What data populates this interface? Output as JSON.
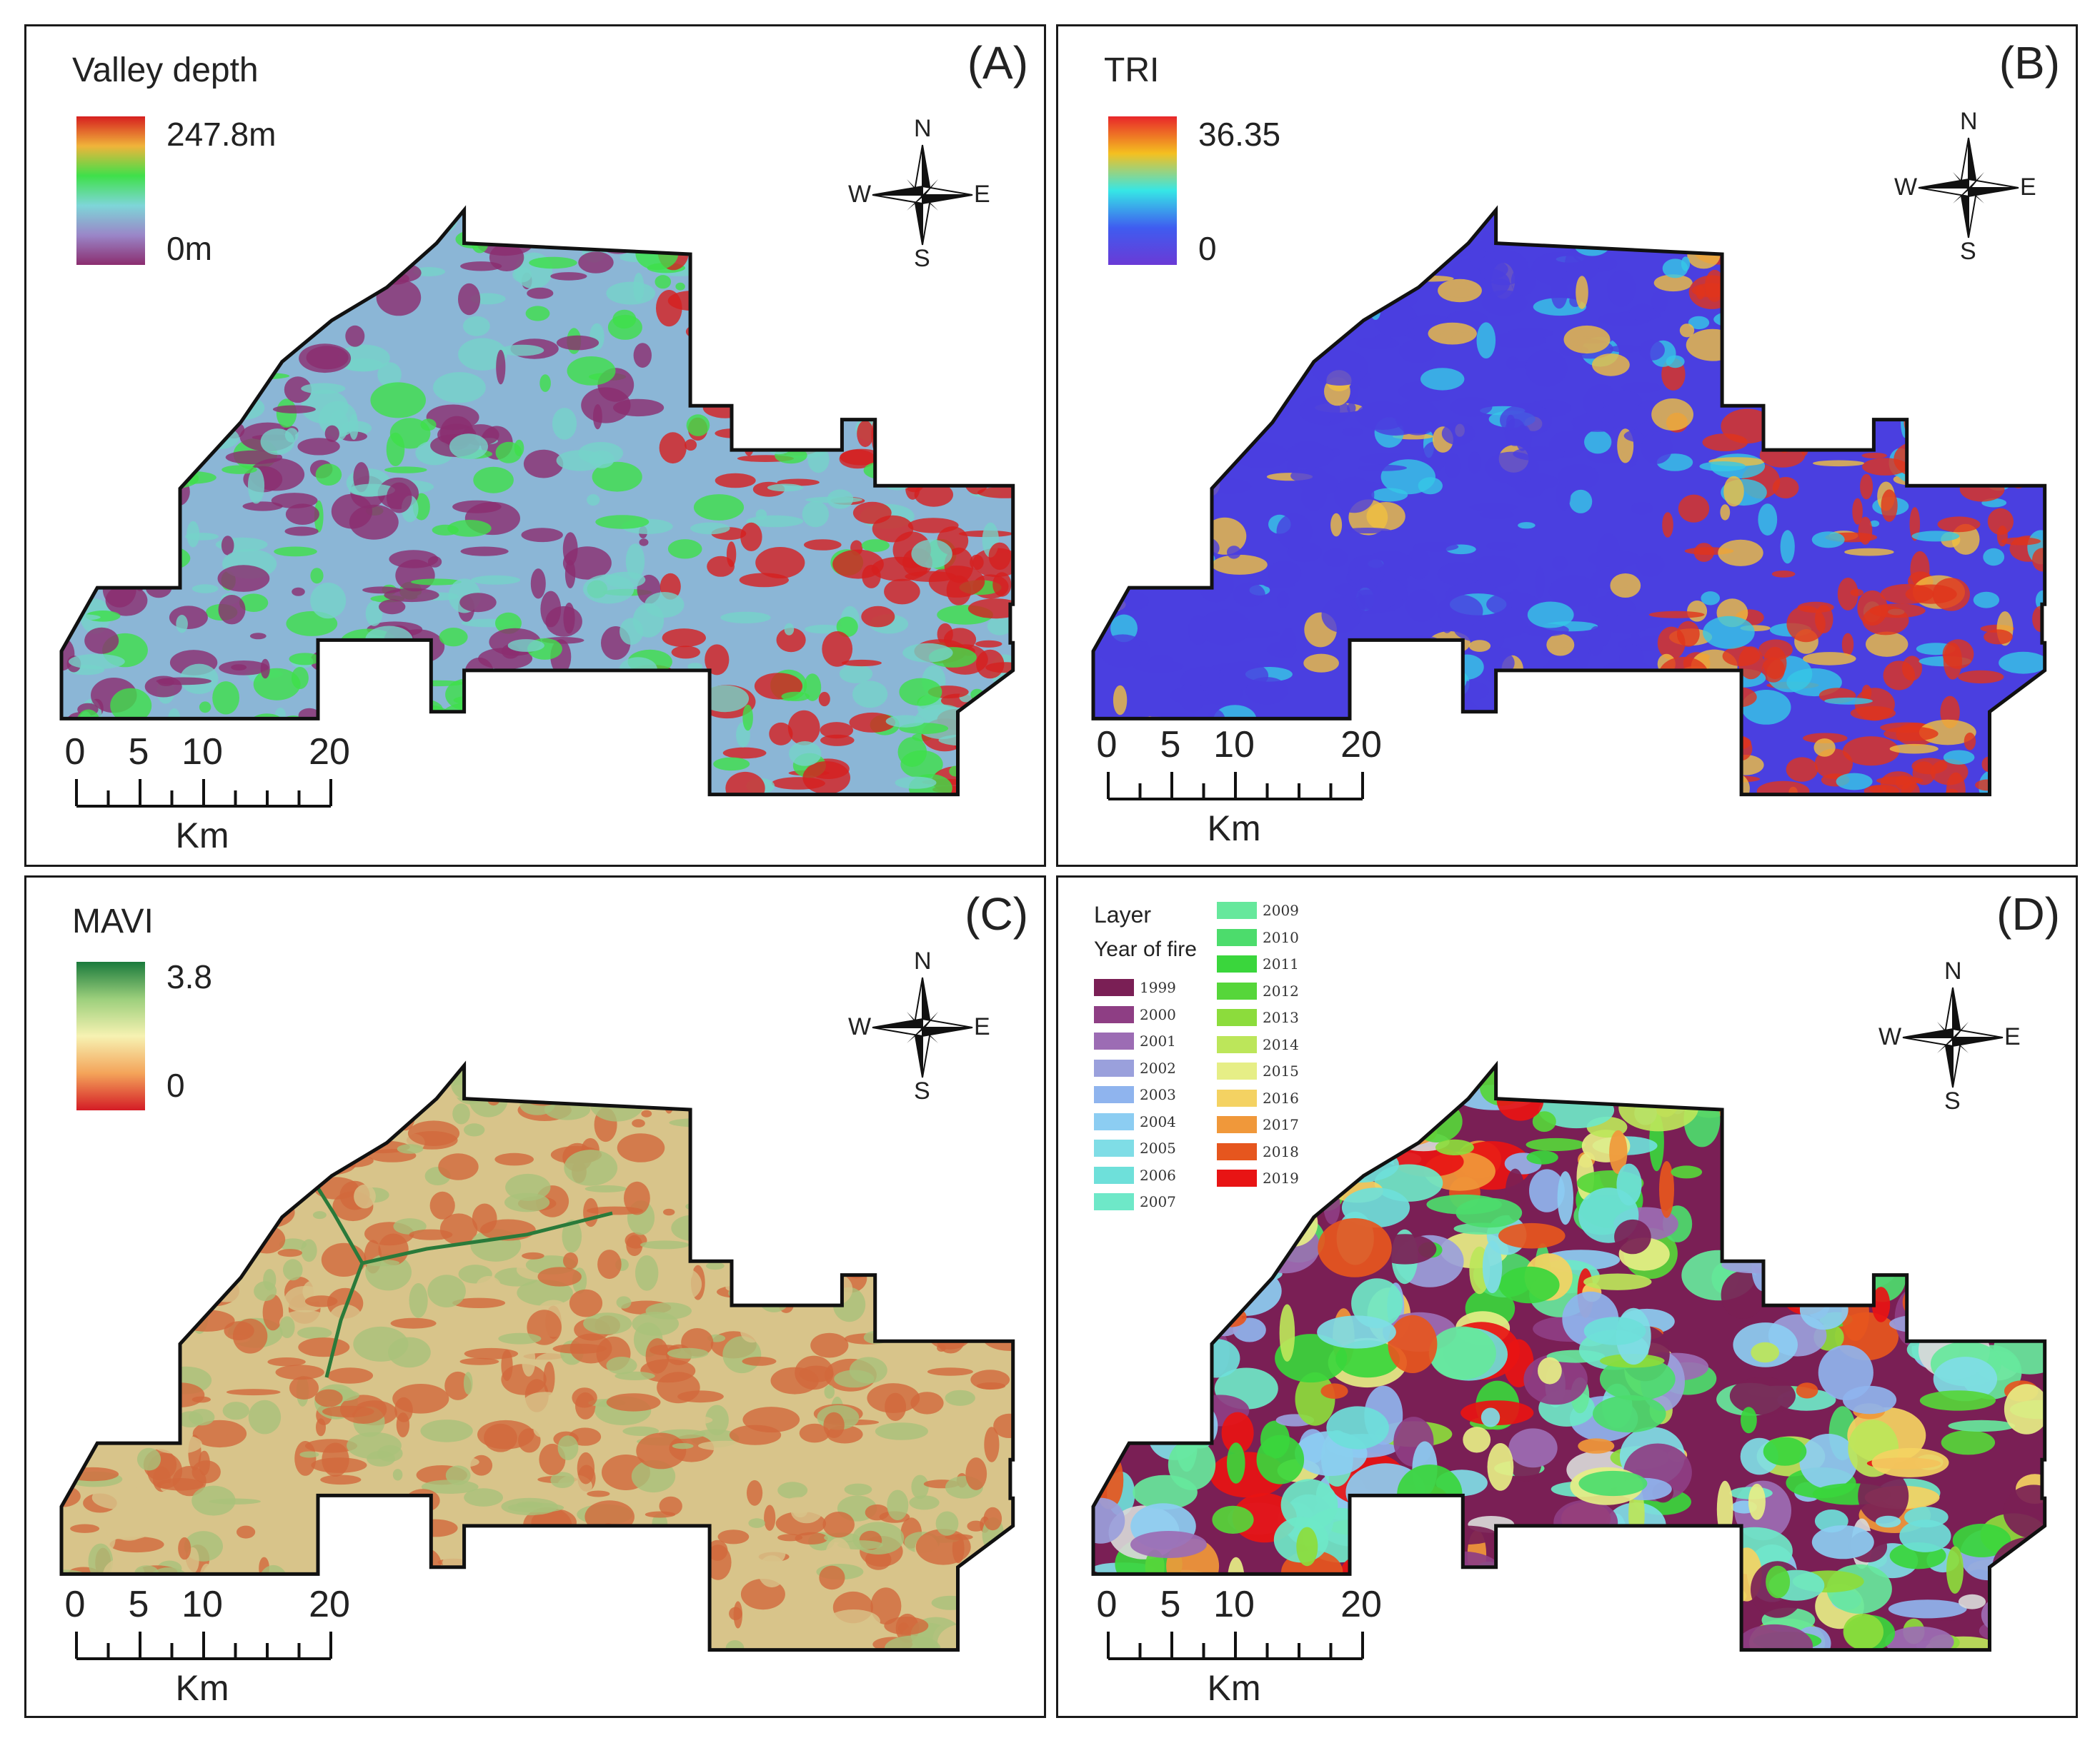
{
  "panels": {
    "a": {
      "label": "(A)",
      "legend_title": "Valley depth",
      "legend_max": "247.8m",
      "legend_min": "0m",
      "ramp_colors": [
        "#d61f1f",
        "#f0b43a",
        "#3fe04a",
        "#7ed6d8",
        "#9a86c8",
        "#8b2d6f"
      ],
      "map_colors": [
        "#8bb6d6",
        "#3fe04a",
        "#d61f1f",
        "#8b2d6f",
        "#76d3c9"
      ]
    },
    "b": {
      "label": "(B)",
      "legend_title": "TRI",
      "legend_max": "36.35",
      "legend_min": "0",
      "ramp_colors": [
        "#e8262a",
        "#f4c020",
        "#36e6e6",
        "#3f5cf0",
        "#6a3ad6"
      ],
      "map_colors": [
        "#4a3fe0",
        "#36c8e6",
        "#f0c040",
        "#e0341c"
      ]
    },
    "c": {
      "label": "(C)",
      "legend_title": "MAVI",
      "legend_max": "3.8",
      "legend_min": "0",
      "ramp_colors": [
        "#1a7a3c",
        "#9ccf7c",
        "#f6f2b2",
        "#f4a45a",
        "#d41c26"
      ],
      "map_colors": [
        "#d8c48a",
        "#d2693c",
        "#a9c27a",
        "#2a7a3a"
      ]
    },
    "d": {
      "label": "(D)",
      "legend_title": "Layer",
      "legend_subtitle": "Year of fire",
      "years": [
        {
          "year": "1999",
          "color": "#7a1f55"
        },
        {
          "year": "2000",
          "color": "#8e3e84"
        },
        {
          "year": "2001",
          "color": "#9c6cb4"
        },
        {
          "year": "2002",
          "color": "#9aa0dc"
        },
        {
          "year": "2003",
          "color": "#8fb4ee"
        },
        {
          "year": "2004",
          "color": "#8ccdf2"
        },
        {
          "year": "2005",
          "color": "#7fdde6"
        },
        {
          "year": "2006",
          "color": "#6ee0da"
        },
        {
          "year": "2007",
          "color": "#6ee8c8"
        },
        {
          "year": "2009",
          "color": "#66e89c"
        },
        {
          "year": "2010",
          "color": "#4cdc6c"
        },
        {
          "year": "2011",
          "color": "#3ad63c"
        },
        {
          "year": "2012",
          "color": "#56d63a"
        },
        {
          "year": "2013",
          "color": "#8cdc3c"
        },
        {
          "year": "2014",
          "color": "#bce65a"
        },
        {
          "year": "2015",
          "color": "#e6ee86"
        },
        {
          "year": "2016",
          "color": "#f4d262"
        },
        {
          "year": "2017",
          "color": "#f0983a"
        },
        {
          "year": "2018",
          "color": "#e6561e"
        },
        {
          "year": "2019",
          "color": "#e81414"
        }
      ]
    }
  },
  "compass": {
    "n": "N",
    "s": "S",
    "e": "E",
    "w": "W"
  },
  "scalebar": {
    "ticks": [
      "0",
      "5",
      "10",
      "20"
    ],
    "unit": "Km"
  }
}
